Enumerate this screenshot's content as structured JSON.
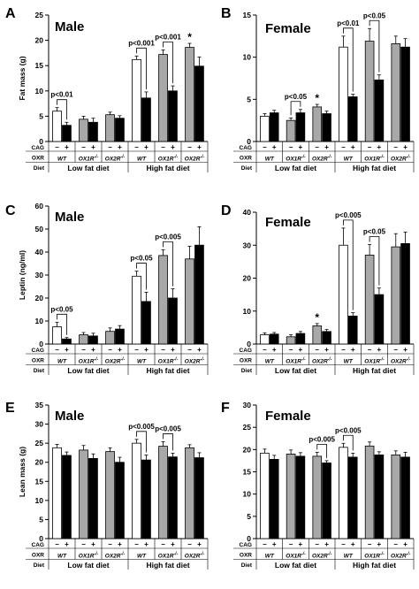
{
  "panels": [
    {
      "letter": "A",
      "title": "Male",
      "ylabel": "Fat mass (g)",
      "ylim": [
        0,
        25
      ],
      "yticks": [
        0,
        5,
        10,
        15,
        20,
        25
      ],
      "bars": [
        6.0,
        3.2,
        4.4,
        3.8,
        5.3,
        4.6,
        16.2,
        8.6,
        17.2,
        10.0,
        18.6,
        14.9
      ],
      "errors": [
        0.7,
        0.6,
        0.6,
        0.8,
        0.5,
        0.5,
        0.7,
        1.2,
        0.9,
        1.0,
        0.8,
        1.8
      ],
      "annotations": [
        {
          "text": "p<0.01",
          "from": 0,
          "to": 1
        },
        {
          "text": "p<0.001",
          "from": 6,
          "to": 7
        },
        {
          "text": "p<0.001",
          "from": 8,
          "to": 9
        }
      ],
      "stars": [
        {
          "text": "*",
          "bar": 10
        }
      ]
    },
    {
      "letter": "B",
      "title": "Female",
      "ylabel": "",
      "ylim": [
        0,
        15
      ],
      "yticks": [
        0,
        5,
        10,
        15
      ],
      "bars": [
        3.0,
        3.4,
        2.5,
        3.4,
        4.1,
        3.3,
        11.2,
        5.3,
        11.9,
        7.3,
        11.6,
        11.2
      ],
      "errors": [
        0.3,
        0.3,
        0.3,
        0.4,
        0.3,
        0.3,
        1.3,
        0.3,
        1.5,
        0.6,
        0.9,
        1.0
      ],
      "annotations": [
        {
          "text": "p<0.05",
          "from": 2,
          "to": 3
        },
        {
          "text": "p<0.01",
          "from": 6,
          "to": 7
        },
        {
          "text": "p<0.05",
          "from": 8,
          "to": 9
        }
      ],
      "stars": [
        {
          "text": "*",
          "bar": 4
        }
      ]
    },
    {
      "letter": "C",
      "title": "Male",
      "ylabel": "Leptin (ng/ml)",
      "ylim": [
        0,
        60
      ],
      "yticks": [
        0,
        10,
        20,
        30,
        40,
        50,
        60
      ],
      "bars": [
        7.5,
        2.2,
        4.0,
        3.5,
        5.5,
        6.5,
        29.5,
        18.5,
        38.5,
        20.0,
        37.0,
        43.0
      ],
      "errors": [
        2.0,
        0.6,
        1.0,
        1.2,
        1.5,
        1.5,
        2.2,
        4.0,
        2.5,
        4.0,
        5.5,
        8.0
      ],
      "annotations": [
        {
          "text": "p<0.05",
          "from": 0,
          "to": 1
        },
        {
          "text": "p<0.05",
          "from": 6,
          "to": 7
        },
        {
          "text": "p<0.005",
          "from": 8,
          "to": 9
        }
      ],
      "stars": []
    },
    {
      "letter": "D",
      "title": "Female",
      "ylabel": "",
      "ylim": [
        0,
        40
      ],
      "yticks": [
        0,
        10,
        20,
        30,
        40
      ],
      "bars": [
        2.8,
        3.0,
        2.2,
        3.2,
        5.5,
        3.8,
        30.0,
        8.5,
        27.0,
        15.0,
        29.5,
        30.5
      ],
      "errors": [
        0.6,
        0.5,
        0.6,
        0.6,
        0.7,
        0.6,
        5.2,
        1.0,
        3.2,
        2.0,
        4.0,
        3.5
      ],
      "annotations": [
        {
          "text": "p<0.005",
          "from": 6,
          "to": 7
        },
        {
          "text": "p<0.05",
          "from": 8,
          "to": 9
        }
      ],
      "stars": [
        {
          "text": "*",
          "bar": 4
        }
      ]
    },
    {
      "letter": "E",
      "title": "Male",
      "ylabel": "Lean mass (g)",
      "ylim": [
        0,
        35
      ],
      "yticks": [
        0,
        5,
        10,
        15,
        20,
        25,
        30,
        35
      ],
      "bars": [
        23.8,
        21.8,
        23.2,
        21.0,
        22.8,
        20.0,
        25.0,
        20.6,
        24.2,
        21.4,
        23.8,
        21.2
      ],
      "errors": [
        0.9,
        0.9,
        1.2,
        1.2,
        1.0,
        1.3,
        1.0,
        1.3,
        1.2,
        1.0,
        0.8,
        1.3
      ],
      "annotations": [
        {
          "text": "p<0.005",
          "from": 6,
          "to": 7
        },
        {
          "text": "p<0.005",
          "from": 8,
          "to": 9
        }
      ],
      "stars": []
    },
    {
      "letter": "F",
      "title": "Female",
      "ylabel": "",
      "ylim": [
        0,
        30
      ],
      "yticks": [
        0,
        5,
        10,
        15,
        20,
        25,
        30
      ],
      "bars": [
        19.2,
        17.8,
        19.0,
        18.5,
        18.5,
        17.0,
        20.5,
        18.3,
        20.8,
        18.8,
        18.8,
        18.3
      ],
      "errors": [
        0.9,
        0.9,
        0.9,
        0.8,
        0.9,
        0.5,
        0.9,
        0.9,
        0.9,
        0.7,
        0.9,
        1.1
      ],
      "annotations": [
        {
          "text": "p<0.005",
          "from": 4,
          "to": 5
        },
        {
          "text": "p<0.005",
          "from": 6,
          "to": 7
        }
      ],
      "stars": []
    }
  ],
  "table": {
    "cag_label": "CAG",
    "oxr_label": "OXR",
    "diet_label": "Diet",
    "cag_signs": [
      "–",
      "+"
    ],
    "genotypes": [
      "WT",
      "OX1R",
      "OX2R",
      "WT",
      "OX1R",
      "OX2R"
    ],
    "genotype_superscript": [
      "",
      "-/-",
      "-/-",
      "",
      "-/-",
      "-/-"
    ],
    "diets": [
      "Low fat diet",
      "High fat diet"
    ]
  },
  "colors": {
    "wt_ctrl": "#ffffff",
    "ko_ctrl": "#a8a8a8",
    "transgenic": "#000000",
    "axis": "#000000"
  }
}
